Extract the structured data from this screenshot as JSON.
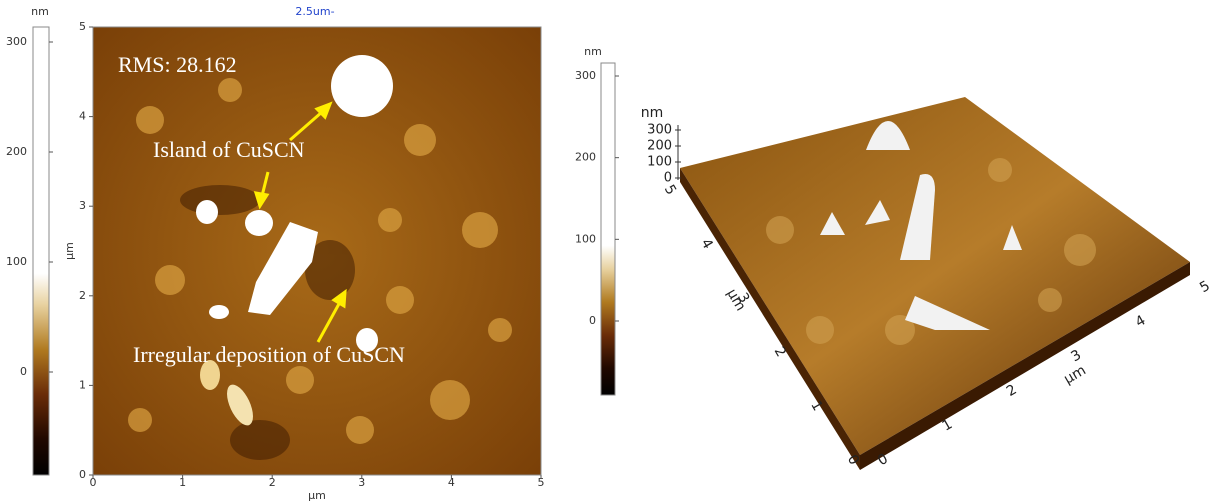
{
  "left_panel": {
    "scale_label": "2.5um-",
    "colorbar": {
      "unit": "nm",
      "ticks": [
        300,
        200,
        100,
        0
      ]
    },
    "x_ticks": [
      0,
      1,
      2,
      3,
      4,
      5
    ],
    "y_ticks": [
      0,
      1,
      2,
      3,
      4,
      5
    ],
    "x_label": "µm",
    "y_label": "µm",
    "annotations": [
      "RMS: 28.162",
      "Island of CuSCN",
      "Irregular deposition of CuSCN"
    ]
  },
  "right_panel": {
    "colorbar": {
      "unit": "nm",
      "ticks": [
        300,
        200,
        100,
        0
      ]
    },
    "z_axis": {
      "unit": "nm",
      "ticks": [
        300,
        200,
        100,
        0
      ]
    },
    "x_ticks": [
      0,
      1,
      2,
      3,
      4,
      5
    ],
    "y_ticks": [
      0,
      1,
      2,
      3,
      4,
      5
    ],
    "x_label": "µm",
    "y_label": "µm"
  }
}
